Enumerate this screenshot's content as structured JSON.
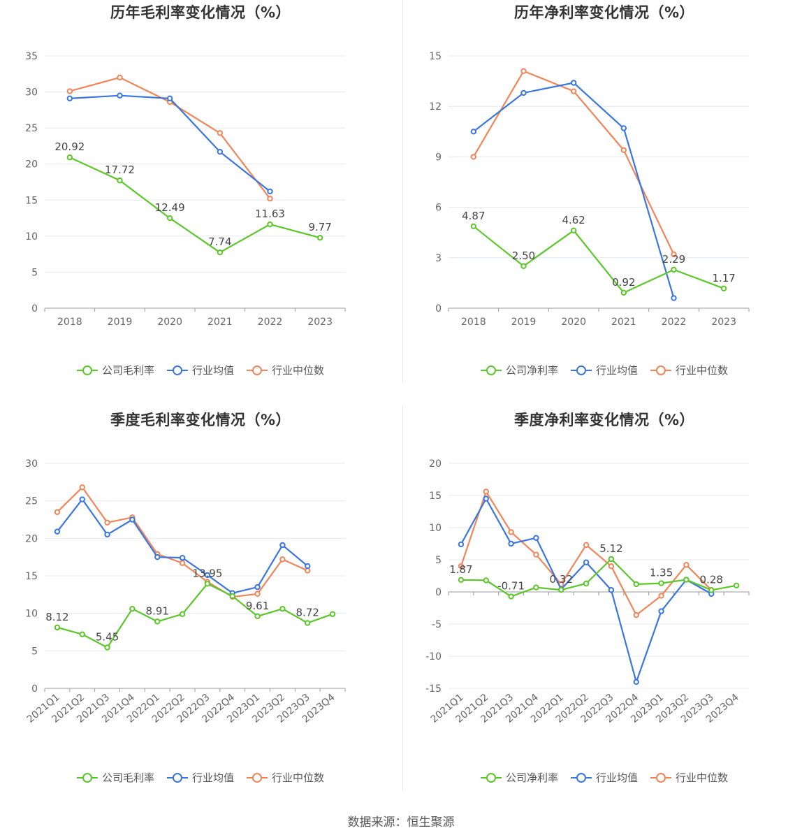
{
  "source": "数据来源：恒生聚源",
  "colors": {
    "company": "#5cc72a",
    "avg": "#3a75e0",
    "median": "#f0855a",
    "grid": "#e4e8f1",
    "axis": "#999999",
    "text": "#666666"
  },
  "legend_icons": {
    "series": "circle-line-icon"
  },
  "chart_data": [
    {
      "type": "line",
      "title": "历年毛利率变化情况（%）",
      "categories": [
        "2018",
        "2019",
        "2020",
        "2021",
        "2022",
        "2023"
      ],
      "ylim": [
        0,
        35
      ],
      "yticks": [
        "0",
        "5",
        "10",
        "15",
        "20",
        "25",
        "30",
        "35"
      ],
      "tick_values": [
        0,
        5,
        10,
        15,
        20,
        25,
        30,
        35
      ],
      "label_series": 0,
      "rotate_x": false,
      "grid": true,
      "legend_position": "bottom",
      "series": [
        {
          "name": "公司毛利率",
          "color": "#5cc72a",
          "values": [
            20.92,
            17.72,
            12.49,
            7.74,
            11.63,
            9.77
          ],
          "labels": [
            "20.92",
            "17.72",
            "12.49",
            "7.74",
            "11.63",
            "9.77"
          ]
        },
        {
          "name": "行业均值",
          "color": "#3a75e0",
          "values": [
            29.1,
            29.5,
            29.1,
            21.7,
            16.2,
            null
          ]
        },
        {
          "name": "行业中位数",
          "color": "#f0855a",
          "values": [
            30.1,
            32.0,
            28.6,
            24.3,
            15.2,
            null
          ]
        }
      ]
    },
    {
      "type": "line",
      "title": "历年净利率变化情况（%）",
      "categories": [
        "2018",
        "2019",
        "2020",
        "2021",
        "2022",
        "2023"
      ],
      "ylim": [
        0,
        15
      ],
      "yticks": [
        "0",
        "3",
        "6",
        "9",
        "12",
        "15"
      ],
      "tick_values": [
        0,
        3,
        6,
        9,
        12,
        15
      ],
      "label_series": 0,
      "rotate_x": false,
      "grid": true,
      "legend_position": "bottom",
      "series": [
        {
          "name": "公司净利率",
          "color": "#5cc72a",
          "values": [
            4.87,
            2.5,
            4.62,
            0.92,
            2.29,
            1.17
          ],
          "labels": [
            "4.87",
            "2.50",
            "4.62",
            "0.92",
            "2.29",
            "1.17"
          ]
        },
        {
          "name": "行业均值",
          "color": "#3a75e0",
          "values": [
            10.5,
            12.8,
            13.4,
            10.7,
            0.6,
            null
          ]
        },
        {
          "name": "行业中位数",
          "color": "#f0855a",
          "values": [
            9.0,
            14.1,
            12.9,
            9.4,
            3.2,
            null
          ]
        }
      ]
    },
    {
      "type": "line",
      "title": "季度毛利率变化情况（%）",
      "categories": [
        "2021Q1",
        "2021Q2",
        "2021Q3",
        "2021Q4",
        "2022Q1",
        "2022Q2",
        "2022Q3",
        "2022Q4",
        "2023Q1",
        "2023Q2",
        "2023Q3",
        "2023Q4"
      ],
      "ylim": [
        0,
        30
      ],
      "yticks": [
        "0",
        "5",
        "10",
        "15",
        "20",
        "25",
        "30"
      ],
      "tick_values": [
        0,
        5,
        10,
        15,
        20,
        25,
        30
      ],
      "label_series": 0,
      "rotate_x": true,
      "grid": true,
      "legend_position": "bottom",
      "series": [
        {
          "name": "公司毛利率",
          "color": "#5cc72a",
          "values": [
            8.12,
            7.2,
            5.45,
            10.6,
            8.91,
            9.9,
            13.95,
            12.3,
            9.61,
            10.6,
            8.72,
            9.9
          ],
          "labels": [
            "8.12",
            "",
            "5.45",
            "",
            "8.91",
            "",
            "13.95",
            "",
            "9.61",
            "",
            "8.72",
            ""
          ]
        },
        {
          "name": "行业均值",
          "color": "#3a75e0",
          "values": [
            20.9,
            25.2,
            20.5,
            22.5,
            17.5,
            17.4,
            15.1,
            12.7,
            13.5,
            19.1,
            16.3,
            null
          ]
        },
        {
          "name": "行业中位数",
          "color": "#f0855a",
          "values": [
            23.5,
            26.8,
            22.1,
            22.8,
            17.9,
            16.7,
            14.2,
            12.2,
            12.6,
            17.2,
            15.7,
            null
          ]
        }
      ]
    },
    {
      "type": "line",
      "title": "季度净利率变化情况（%）",
      "categories": [
        "2021Q1",
        "2021Q2",
        "2021Q3",
        "2021Q4",
        "2022Q1",
        "2022Q2",
        "2022Q3",
        "2022Q4",
        "2023Q1",
        "2023Q2",
        "2023Q3",
        "2023Q4"
      ],
      "ylim": [
        -15,
        20
      ],
      "yticks": [
        "-15",
        "-10",
        "-5",
        "0",
        "5",
        "10",
        "15",
        "20"
      ],
      "tick_values": [
        -15,
        -10,
        -5,
        0,
        5,
        10,
        15,
        20
      ],
      "label_series": 0,
      "rotate_x": true,
      "grid": true,
      "legend_position": "bottom",
      "series": [
        {
          "name": "公司净利率",
          "color": "#5cc72a",
          "values": [
            1.87,
            1.8,
            -0.71,
            0.7,
            0.32,
            1.3,
            5.12,
            1.2,
            1.35,
            1.9,
            0.28,
            1.0
          ],
          "labels": [
            "1.87",
            "",
            "-0.71",
            "",
            "0.32",
            "",
            "5.12",
            "",
            "1.35",
            "",
            "0.28",
            ""
          ]
        },
        {
          "name": "行业均值",
          "color": "#3a75e0",
          "values": [
            7.4,
            14.5,
            7.5,
            8.4,
            0.4,
            4.6,
            0.3,
            -14.0,
            -3.0,
            1.9,
            -0.3,
            null
          ]
        },
        {
          "name": "行业中位数",
          "color": "#f0855a",
          "values": [
            4.0,
            15.6,
            9.3,
            5.8,
            1.2,
            7.3,
            4.0,
            -3.6,
            -0.6,
            4.2,
            0.3,
            null
          ]
        }
      ]
    }
  ]
}
